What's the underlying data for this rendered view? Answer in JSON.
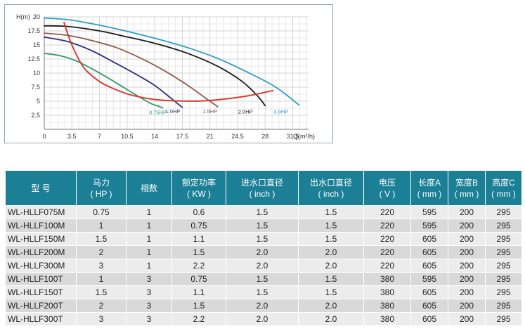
{
  "chart_data": {
    "type": "line",
    "ylabel": "H(m)",
    "xlabel": "Q(m³/h)",
    "xlim": [
      0,
      33.5
    ],
    "ylim": [
      0,
      20
    ],
    "x_ticks": [
      "0",
      "3.5",
      "7",
      "10.5",
      "14",
      "17.5",
      "21",
      "24.5",
      "28",
      "31.5"
    ],
    "x_tick_values": [
      0,
      3.5,
      7,
      10.5,
      14,
      17.5,
      21,
      24.5,
      28,
      31.5
    ],
    "y_ticks": [
      "2.5",
      "5",
      "7.5",
      "10",
      "12.5",
      "15",
      "17.5",
      "20"
    ],
    "y_tick_values": [
      2.5,
      5,
      7.5,
      10,
      12.5,
      15,
      17.5,
      20
    ],
    "grid": true,
    "series": [
      {
        "name": "0.75HP",
        "color": "#2f9a6a",
        "x": [
          0,
          2,
          4,
          6,
          8,
          10,
          12,
          13.5,
          14.5,
          15
        ],
        "y": [
          13.5,
          13.1,
          12.2,
          10.8,
          9.2,
          7.5,
          5.8,
          4.6,
          4.1,
          3.8
        ],
        "label_at": [
          14.4,
          2.7
        ]
      },
      {
        "name": "1.0HP",
        "color": "#2c2f7e",
        "x": [
          0,
          3,
          6,
          9,
          12,
          14,
          16,
          17.5
        ],
        "y": [
          16.4,
          15.6,
          14.0,
          11.8,
          9.5,
          7.8,
          5.6,
          3.9
        ],
        "label_at": [
          16.3,
          2.9
        ]
      },
      {
        "name": "1.5HP",
        "color": "#8e5a4a",
        "x": [
          0,
          3,
          6,
          9,
          12,
          15,
          18,
          20.5,
          22
        ],
        "y": [
          17.1,
          16.7,
          15.8,
          14.6,
          12.8,
          10.6,
          8.0,
          5.5,
          4.0
        ],
        "label_at": [
          21.0,
          2.9
        ]
      },
      {
        "name": "2.0HP",
        "color": "#1a1a1a",
        "x": [
          0,
          3,
          7,
          10,
          14,
          18,
          22,
          25,
          27,
          28
        ],
        "y": [
          18.4,
          18.3,
          17.5,
          16.6,
          15.3,
          13.6,
          11.2,
          8.6,
          6.0,
          4.2
        ],
        "label_at": [
          25.5,
          2.8
        ]
      },
      {
        "name": "3.0HP",
        "color": "#2b9dc4",
        "x": [
          0,
          3,
          6,
          10,
          14,
          18,
          22,
          26,
          29,
          31,
          32.3
        ],
        "y": [
          19.8,
          19.5,
          18.8,
          17.6,
          16.2,
          14.6,
          12.6,
          10.0,
          7.8,
          5.8,
          4.3
        ],
        "label_at": [
          30.0,
          2.8
        ]
      },
      {
        "name": "",
        "color": "#d63d34",
        "x": [
          2.5,
          3.5,
          5,
          7,
          9,
          11,
          14,
          17,
          20,
          23,
          26,
          29
        ],
        "y": [
          19.0,
          15.0,
          11.0,
          8.5,
          7.1,
          6.1,
          5.3,
          5.05,
          5.05,
          5.4,
          6.0,
          6.9
        ],
        "label_at": null
      }
    ]
  },
  "table": {
    "headers": [
      {
        "line1": "型  号",
        "line2": ""
      },
      {
        "line1": "马力",
        "line2": "( HP )"
      },
      {
        "line1": "相数",
        "line2": ""
      },
      {
        "line1": "额定功率",
        "line2": "( KW )"
      },
      {
        "line1": "进水口直径",
        "line2": "( inch )"
      },
      {
        "line1": "出水口直径",
        "line2": "( inch )"
      },
      {
        "line1": "电压",
        "line2": "( V )"
      },
      {
        "line1": "长度A",
        "line2": "( mm )"
      },
      {
        "line1": "宽度B",
        "line2": "( mm )"
      },
      {
        "line1": "高度C",
        "line2": "( mm )"
      }
    ],
    "rows": [
      [
        "WL-HLLF075M",
        "0.75",
        "1",
        "0.6",
        "1.5",
        "1.5",
        "220",
        "595",
        "200",
        "295"
      ],
      [
        "WL-HLLF100M",
        "1",
        "1",
        "0.75",
        "1.5",
        "1.5",
        "220",
        "595",
        "200",
        "295"
      ],
      [
        "WL-HLLF150M",
        "1.5",
        "1",
        "1.1",
        "1.5",
        "1.5",
        "220",
        "605",
        "200",
        "295"
      ],
      [
        "WL-HLLF200M",
        "2",
        "1",
        "1.5",
        "2.0",
        "2.0",
        "220",
        "605",
        "200",
        "295"
      ],
      [
        "WL-HLLF300M",
        "3",
        "1",
        "2.2",
        "2.0",
        "2.0",
        "220",
        "605",
        "200",
        "295"
      ],
      [
        "WL-HLLF100T",
        "1",
        "3",
        "0.75",
        "1.5",
        "1.5",
        "380",
        "595",
        "200",
        "295"
      ],
      [
        "WL-HLLF150T",
        "1.5",
        "3",
        "1.1",
        "1.5",
        "1.5",
        "380",
        "605",
        "200",
        "295"
      ],
      [
        "WL-HLLF200T",
        "2",
        "3",
        "1.5",
        "2.0",
        "2.0",
        "380",
        "605",
        "200",
        "295"
      ],
      [
        "WL-HLLF300T",
        "3",
        "3",
        "2.2",
        "2.0",
        "2.0",
        "380",
        "605",
        "200",
        "295"
      ]
    ]
  }
}
